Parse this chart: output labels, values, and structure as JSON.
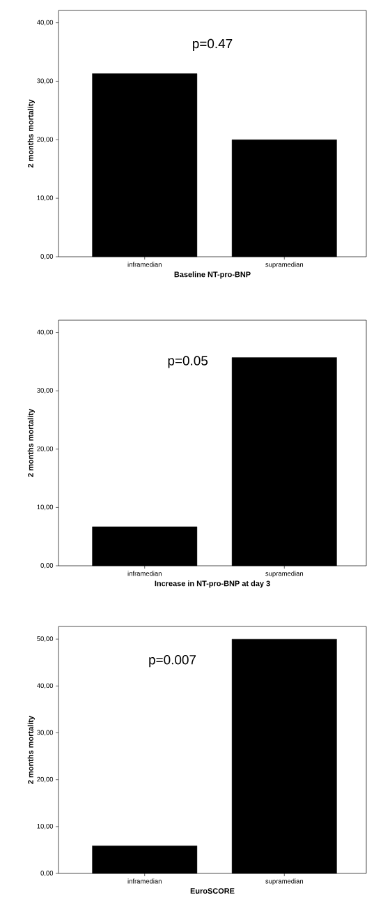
{
  "chart_data": [
    {
      "type": "bar",
      "xlabel": "Baseline NT-pro-BNP",
      "ylabel": "2 months mortality",
      "categories": [
        "inframedian",
        "supramedian"
      ],
      "values": [
        31.3,
        20.0
      ],
      "color": "#000000",
      "ylim": [
        0,
        42.1
      ],
      "yticks": [
        {
          "value": 0,
          "label": "0,00"
        },
        {
          "value": 10,
          "label": "10,00"
        },
        {
          "value": 20,
          "label": "20,00"
        },
        {
          "value": 30,
          "label": "30,00"
        },
        {
          "value": 40,
          "label": "40,00"
        }
      ],
      "annotations": [
        "p=0.47"
      ]
    },
    {
      "type": "bar",
      "xlabel": "Increase in NT-pro-BNP at day 3",
      "ylabel": "2 months mortality",
      "categories": [
        "inframedian",
        "supramedian"
      ],
      "values": [
        6.7,
        35.7
      ],
      "color": "#000000",
      "ylim": [
        0,
        42.1
      ],
      "yticks": [
        {
          "value": 0,
          "label": "0,00"
        },
        {
          "value": 10,
          "label": "10,00"
        },
        {
          "value": 20,
          "label": "20,00"
        },
        {
          "value": 30,
          "label": "30,00"
        },
        {
          "value": 40,
          "label": "40,00"
        }
      ],
      "annotations": [
        "p=0.05"
      ]
    },
    {
      "type": "bar",
      "xlabel": "EuroSCORE",
      "ylabel": "2 months mortality",
      "categories": [
        "inframedian",
        "supramedian"
      ],
      "values": [
        5.9,
        50.0
      ],
      "color": "#000000",
      "ylim": [
        0,
        52.7
      ],
      "yticks": [
        {
          "value": 0,
          "label": "0,00"
        },
        {
          "value": 10,
          "label": "10,00"
        },
        {
          "value": 20,
          "label": "20,00"
        },
        {
          "value": 30,
          "label": "30,00"
        },
        {
          "value": 40,
          "label": "40,00"
        },
        {
          "value": 50,
          "label": "50,00"
        }
      ],
      "annotations": [
        "p=0.007"
      ]
    }
  ]
}
